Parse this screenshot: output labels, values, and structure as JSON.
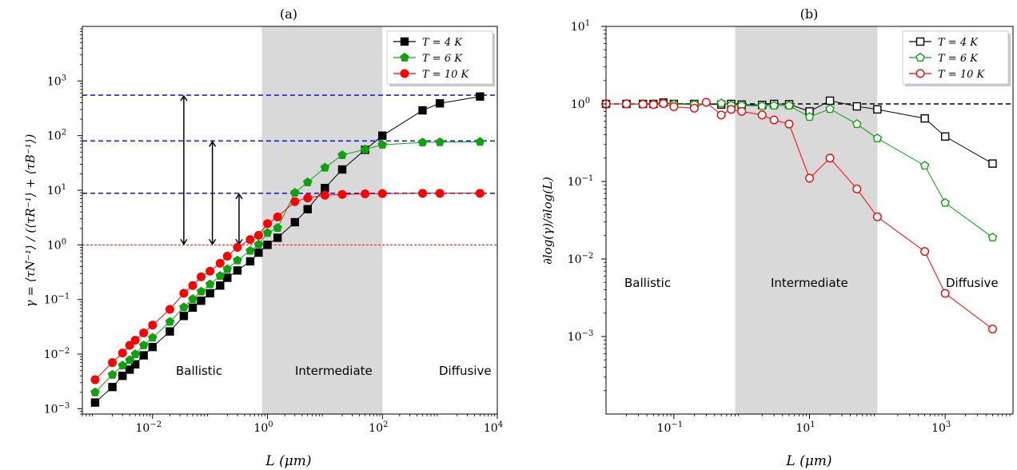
{
  "chart_data": [
    {
      "type": "line",
      "panel_label": "(a)",
      "xlabel": "L (μm)",
      "ylabel": "γ = ⟨τN⁻¹⟩ / (⟨τR⁻¹⟩ + ⟨τB⁻¹⟩)",
      "xscale": "log",
      "yscale": "log",
      "xlim": [
        0.0006,
        10000
      ],
      "ylim": [
        0.0008,
        10000
      ],
      "xticks": [
        "10^-2",
        "10^0",
        "10^2",
        "10^4"
      ],
      "yticks": [
        "10^-3",
        "10^-2",
        "10^-1",
        "10^0",
        "10^1",
        "10^2",
        "10^3"
      ],
      "shaded_region": [
        0.8,
        100
      ],
      "regions": [
        "Ballistic",
        "Intermediate",
        "Diffusive"
      ],
      "hlines": [
        {
          "y": 550,
          "style": "dashed",
          "color": "#1f1fd6"
        },
        {
          "y": 80,
          "style": "dashed",
          "color": "#1f1fd6"
        },
        {
          "y": 8.8,
          "style": "dashed",
          "color": "#1f1fd6"
        },
        {
          "y": 1,
          "style": "dotted",
          "color": "#ff0000"
        }
      ],
      "arrows": [
        {
          "x": 0.035,
          "y_from": 1,
          "y_to": 550
        },
        {
          "x": 0.11,
          "y_from": 1,
          "y_to": 80
        },
        {
          "x": 0.32,
          "y_from": 1,
          "y_to": 8.8
        }
      ],
      "legend_position": "top-right",
      "series": [
        {
          "name": "T = 4 K",
          "color": "#000000",
          "marker": "square",
          "filled": true,
          "x": [
            0.001,
            0.002,
            0.003,
            0.004,
            0.005,
            0.007,
            0.01,
            0.02,
            0.035,
            0.05,
            0.07,
            0.1,
            0.15,
            0.2,
            0.3,
            0.5,
            0.7,
            1,
            1.5,
            3,
            5,
            10,
            20,
            50,
            100,
            500,
            1000,
            5000
          ],
          "y": [
            0.0013,
            0.0025,
            0.004,
            0.0052,
            0.0065,
            0.0095,
            0.0135,
            0.026,
            0.05,
            0.071,
            0.095,
            0.13,
            0.18,
            0.25,
            0.34,
            0.5,
            0.72,
            1,
            1.35,
            2.6,
            4.5,
            11,
            24,
            55,
            100,
            290,
            390,
            520
          ]
        },
        {
          "name": "T = 6 K",
          "color": "#10a010",
          "marker": "pentagon",
          "filled": true,
          "x": [
            0.001,
            0.002,
            0.003,
            0.004,
            0.005,
            0.007,
            0.01,
            0.02,
            0.035,
            0.05,
            0.07,
            0.1,
            0.15,
            0.2,
            0.3,
            0.5,
            0.7,
            1,
            1.5,
            3,
            5,
            10,
            20,
            50,
            100,
            500,
            1000,
            5000
          ],
          "y": [
            0.002,
            0.0042,
            0.0062,
            0.0078,
            0.01,
            0.0145,
            0.02,
            0.039,
            0.072,
            0.102,
            0.14,
            0.19,
            0.27,
            0.36,
            0.52,
            0.78,
            1.02,
            1.65,
            2.05,
            9,
            14,
            26,
            44,
            56,
            68,
            75,
            76,
            77
          ]
        },
        {
          "name": "T = 10 K",
          "color": "#ff0000",
          "marker": "circle",
          "filled": true,
          "x": [
            0.001,
            0.002,
            0.003,
            0.004,
            0.005,
            0.007,
            0.01,
            0.02,
            0.035,
            0.05,
            0.07,
            0.1,
            0.15,
            0.2,
            0.3,
            0.5,
            0.7,
            1,
            1.5,
            3,
            5,
            10,
            20,
            50,
            100,
            500,
            1000,
            5000
          ],
          "y": [
            0.0034,
            0.007,
            0.0105,
            0.0145,
            0.018,
            0.0245,
            0.034,
            0.066,
            0.13,
            0.18,
            0.26,
            0.33,
            0.46,
            0.62,
            0.9,
            1.25,
            1.5,
            2.45,
            3.25,
            6.2,
            7.2,
            8.1,
            8.4,
            8.6,
            8.7,
            8.8,
            8.8,
            8.8
          ]
        }
      ]
    },
    {
      "type": "line",
      "panel_label": "(b)",
      "xlabel": "L (μm)",
      "ylabel": "∂log(γ)/∂log(L)",
      "xscale": "log",
      "yscale": "log",
      "xlim": [
        0.01,
        10000
      ],
      "ylim": [
        0.0001,
        10
      ],
      "xticks": [
        "10^-1",
        "10^1",
        "10^3"
      ],
      "yticks": [
        "10^-3",
        "10^-2",
        "10^-1",
        "10^0",
        "10^1"
      ],
      "shaded_region": [
        0.8,
        100
      ],
      "regions": [
        "Ballistic",
        "Intermediate",
        "Diffusive"
      ],
      "hlines": [
        {
          "y": 1,
          "style": "dashed",
          "color": "#000000"
        }
      ],
      "legend_position": "top-right",
      "series": [
        {
          "name": "T = 4 K",
          "color": "#000000",
          "marker": "square",
          "filled": false,
          "x": [
            0.01,
            0.02,
            0.035,
            0.05,
            0.07,
            0.1,
            0.2,
            0.5,
            0.7,
            1,
            2,
            3,
            5,
            10,
            20,
            50,
            100,
            500,
            1000,
            5000
          ],
          "y": [
            1,
            1,
            1,
            1,
            1.04,
            1,
            1,
            0.98,
            1,
            0.98,
            0.97,
            1,
            0.99,
            0.8,
            1.1,
            0.93,
            0.85,
            0.65,
            0.38,
            0.17
          ]
        },
        {
          "name": "T = 6 K",
          "color": "#10a010",
          "marker": "pentagon",
          "filled": false,
          "x": [
            0.01,
            0.02,
            0.035,
            0.05,
            0.07,
            0.1,
            0.2,
            0.5,
            0.7,
            1,
            2,
            3,
            5,
            10,
            20,
            50,
            100,
            500,
            1000,
            5000
          ],
          "y": [
            1,
            1,
            1,
            1,
            1.02,
            0.99,
            0.98,
            1.02,
            0.96,
            0.95,
            0.94,
            0.95,
            0.95,
            0.68,
            0.86,
            0.55,
            0.36,
            0.16,
            0.053,
            0.019
          ]
        },
        {
          "name": "T = 10 K",
          "color": "#ff0000",
          "marker": "circle",
          "filled": false,
          "x": [
            0.01,
            0.02,
            0.035,
            0.05,
            0.07,
            0.1,
            0.2,
            0.3,
            0.5,
            0.7,
            1,
            2,
            3,
            5,
            10,
            20,
            50,
            100,
            500,
            1000,
            5000
          ],
          "y": [
            1,
            1,
            0.99,
            0.98,
            1.01,
            0.92,
            0.88,
            1.05,
            0.72,
            0.85,
            0.8,
            0.72,
            0.62,
            0.55,
            0.11,
            0.2,
            0.08,
            0.035,
            0.0125,
            0.0036,
            0.00125
          ]
        }
      ]
    }
  ]
}
